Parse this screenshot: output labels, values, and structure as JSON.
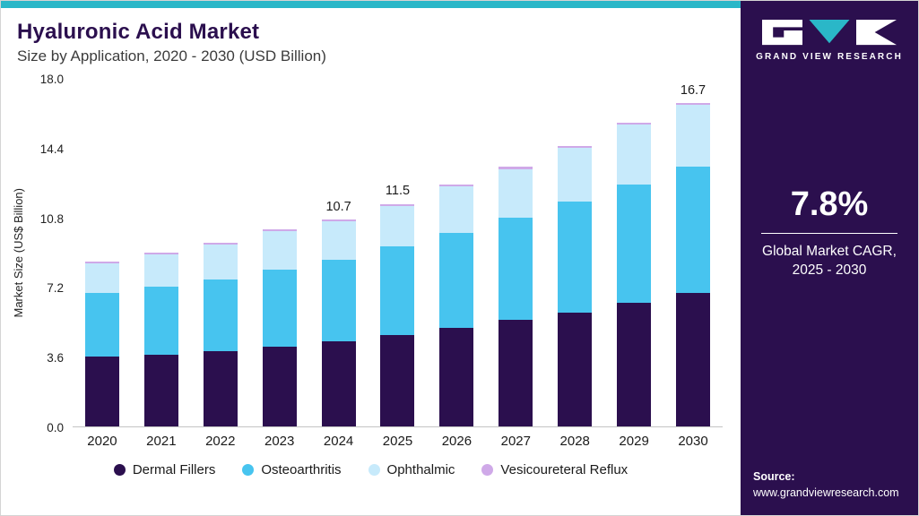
{
  "header": {
    "title": "Hyaluronic Acid Market",
    "subtitle": "Size by Application, 2020 - 2030 (USD Billion)"
  },
  "chart_data": {
    "type": "bar",
    "stacked": true,
    "title": "Hyaluronic Acid Market Size by Application, 2020 - 2030 (USD Billion)",
    "ylabel": "Market Size (US$ Billion)",
    "xlabel": "",
    "ylim": [
      0,
      18
    ],
    "yticks": [
      0.0,
      3.6,
      7.2,
      10.8,
      14.4,
      18.0
    ],
    "grid": false,
    "legend_position": "bottom",
    "categories": [
      "2020",
      "2021",
      "2022",
      "2023",
      "2024",
      "2025",
      "2026",
      "2027",
      "2028",
      "2029",
      "2030"
    ],
    "series": [
      {
        "name": "Dermal Fillers",
        "color": "#2b0f4e",
        "values": [
          3.6,
          3.7,
          3.9,
          4.1,
          4.4,
          4.7,
          5.1,
          5.5,
          5.9,
          6.4,
          6.9
        ]
      },
      {
        "name": "Osteoarthritis",
        "color": "#47c4ef",
        "values": [
          3.3,
          3.5,
          3.7,
          4.0,
          4.2,
          4.6,
          4.9,
          5.3,
          5.7,
          6.1,
          6.5
        ]
      },
      {
        "name": "Ophthalmic",
        "color": "#c7eafb",
        "values": [
          1.5,
          1.7,
          1.8,
          2.0,
          2.0,
          2.1,
          2.4,
          2.5,
          2.8,
          3.1,
          3.2
        ]
      },
      {
        "name": "Vesicoureteral Reflux",
        "color": "#cfa9e8",
        "values": [
          0.1,
          0.1,
          0.1,
          0.1,
          0.1,
          0.1,
          0.1,
          0.1,
          0.1,
          0.1,
          0.1
        ]
      }
    ],
    "total_labels": {
      "2024": "10.7",
      "2025": "11.5",
      "2030": "16.7"
    }
  },
  "sidebar": {
    "logo_text": "GRAND VIEW RESEARCH",
    "stat_value": "7.8%",
    "stat_label": "Global Market CAGR, 2025 - 2030",
    "source_label": "Source:",
    "source_url": "www.grandviewresearch.com"
  },
  "colors": {
    "accent_teal": "#2ab7c8",
    "sidebar_bg": "#2b0f4e"
  }
}
